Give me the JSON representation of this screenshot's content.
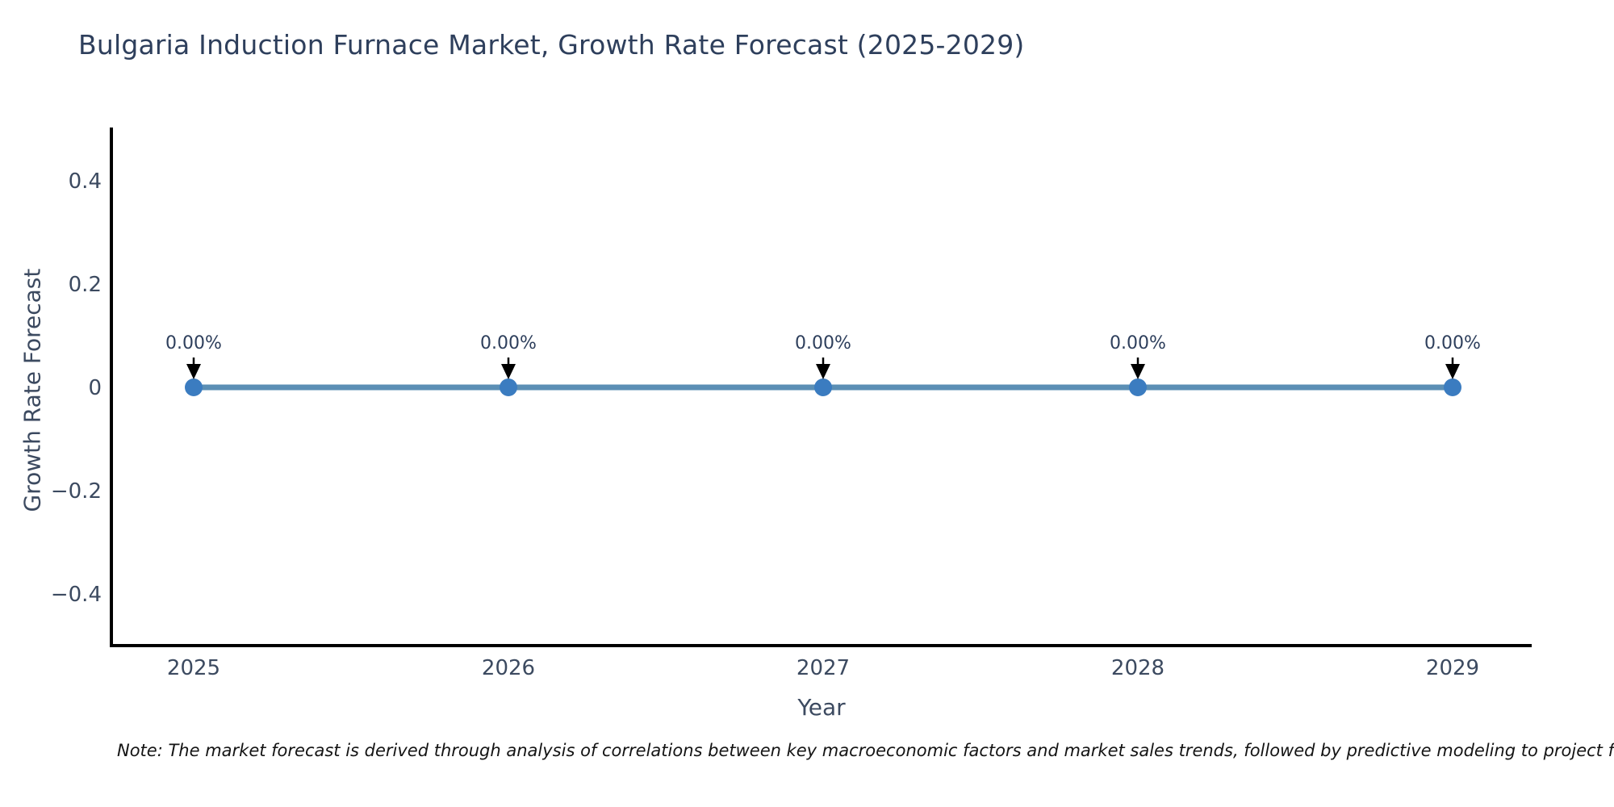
{
  "note": {
    "text": "Note: The market forecast is derived through analysis of correlations between key macroeconomic factors and market sales trends, followed by predictive modeling to project future sales."
  },
  "chart_data": {
    "type": "line",
    "title": "Bulgaria Induction Furnace Market, Growth Rate Forecast (2025-2029)",
    "xlabel": "Year",
    "ylabel": "Growth Rate Forecast",
    "x": [
      2025,
      2026,
      2027,
      2028,
      2029
    ],
    "x_tick_labels": [
      "2025",
      "2026",
      "2027",
      "2028",
      "2029"
    ],
    "series": [
      {
        "name": "Growth Rate Forecast",
        "values": [
          0,
          0,
          0,
          0,
          0
        ]
      }
    ],
    "point_labels": [
      "0.00%",
      "0.00%",
      "0.00%",
      "0.00%",
      "0.00%"
    ],
    "y_tick_values": [
      0.4,
      0.2,
      0,
      -0.2,
      -0.4
    ],
    "y_tick_labels": [
      "0.4",
      "0.2",
      "0",
      "−0.2",
      "−0.4"
    ],
    "ylim": [
      -0.5,
      0.5
    ],
    "grid": false,
    "legend": "none",
    "colors": {
      "line": "#5b8fb5",
      "marker": "#3b7cc0",
      "axis": "#000000",
      "tick_text": "#3c4a60",
      "annotation_text": "#2e3f5c",
      "arrow": "#000000"
    }
  }
}
